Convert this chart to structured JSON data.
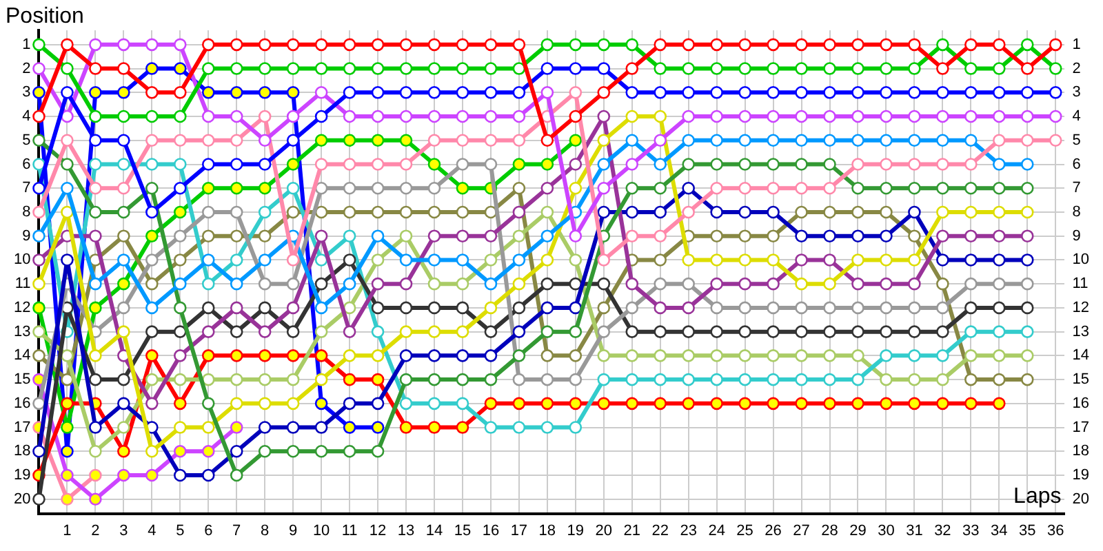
{
  "chart_data": {
    "type": "line",
    "xlabel": "Laps",
    "ylabel": "Position",
    "x": [
      0,
      1,
      2,
      3,
      4,
      5,
      6,
      7,
      8,
      9,
      10,
      11,
      12,
      13,
      14,
      15,
      16,
      17,
      18,
      19,
      20,
      21,
      22,
      23,
      24,
      25,
      26,
      27,
      28,
      29,
      30,
      31,
      32,
      33,
      34,
      35,
      36
    ],
    "xlim": [
      0,
      36.3
    ],
    "xticks": [
      1,
      2,
      3,
      4,
      5,
      6,
      7,
      8,
      9,
      10,
      11,
      12,
      13,
      14,
      15,
      16,
      17,
      18,
      19,
      20,
      21,
      22,
      23,
      24,
      25,
      26,
      27,
      28,
      29,
      30,
      31,
      32,
      33,
      34,
      35,
      36
    ],
    "ylim": [
      20.6,
      0.4
    ],
    "yticks": [
      1,
      2,
      3,
      4,
      5,
      6,
      7,
      8,
      9,
      10,
      11,
      12,
      13,
      14,
      15,
      16,
      17,
      18,
      19,
      20
    ],
    "y2lim": [
      20.6,
      0.4
    ],
    "y2ticks": [
      1,
      2,
      3,
      4,
      5,
      6,
      7,
      8,
      9,
      10,
      11,
      12,
      13,
      14,
      15,
      16,
      17,
      18,
      19,
      20
    ],
    "grid": true,
    "legend": false,
    "marker": "circle",
    "line_style": "solid",
    "series": [
      {
        "color": "#ff0000",
        "values": [
          4,
          1,
          2,
          2,
          3,
          3,
          1,
          1,
          1,
          1,
          1,
          1,
          1,
          1,
          1,
          1,
          1,
          1,
          5,
          4,
          3,
          2,
          1,
          1,
          1,
          1,
          1,
          1,
          1,
          1,
          1,
          1,
          2,
          1,
          1,
          2,
          1
        ]
      },
      {
        "color": "#00cc00",
        "values": [
          1,
          2,
          4,
          4,
          4,
          4,
          2,
          2,
          2,
          2,
          2,
          2,
          2,
          2,
          2,
          2,
          2,
          2,
          1,
          1,
          1,
          1,
          2,
          2,
          2,
          2,
          2,
          2,
          2,
          2,
          2,
          2,
          1,
          2,
          2,
          1,
          2
        ]
      },
      {
        "color": "#0000ff",
        "values": [
          7,
          3,
          5,
          5,
          8,
          7,
          6,
          6,
          6,
          5,
          4,
          3,
          3,
          3,
          3,
          3,
          3,
          3,
          2,
          2,
          2,
          3,
          3,
          3,
          3,
          3,
          3,
          3,
          3,
          3,
          3,
          3,
          3,
          3,
          3,
          3,
          3
        ]
      },
      {
        "color": "#cc44ff",
        "values": [
          2,
          4,
          1,
          1,
          1,
          1,
          4,
          4,
          5,
          4,
          3,
          4,
          4,
          4,
          4,
          4,
          4,
          4,
          3,
          9,
          7,
          6,
          5,
          4,
          4,
          4,
          4,
          4,
          4,
          4,
          4,
          4,
          4,
          4,
          4,
          4,
          4
        ]
      },
      {
        "color": "#ff88aa",
        "values": [
          8,
          5,
          7,
          7,
          5,
          5,
          5,
          5,
          4,
          10,
          6,
          6,
          6,
          6,
          5,
          5,
          5,
          5,
          4,
          3,
          10,
          9,
          9,
          8,
          7,
          7,
          7,
          7,
          7,
          6,
          6,
          6,
          6,
          6,
          5,
          5,
          5
        ]
      },
      {
        "color": "#0099ff",
        "values": [
          9,
          7,
          11,
          10,
          12,
          11,
          10,
          11,
          10,
          9,
          12,
          11,
          9,
          10,
          10,
          10,
          11,
          10,
          9,
          8,
          6,
          5,
          6,
          5,
          5,
          5,
          5,
          5,
          5,
          5,
          5,
          5,
          5,
          5,
          6,
          6,
          null
        ]
      },
      {
        "color": "#339933",
        "values": [
          5,
          6,
          8,
          8,
          7,
          12,
          16,
          19,
          18,
          18,
          18,
          18,
          18,
          15,
          15,
          15,
          15,
          14,
          13,
          13,
          9,
          7,
          7,
          6,
          6,
          6,
          6,
          6,
          6,
          7,
          7,
          7,
          7,
          7,
          7,
          7,
          null
        ]
      },
      {
        "color": "#dddd00",
        "values": [
          11,
          8,
          14,
          13,
          18,
          17,
          17,
          16,
          16,
          16,
          15,
          14,
          14,
          13,
          13,
          13,
          12,
          11,
          10,
          7,
          5,
          4,
          4,
          10,
          10,
          10,
          10,
          11,
          11,
          10,
          10,
          10,
          8,
          8,
          8,
          8,
          null
        ]
      },
      {
        "color": "#993399",
        "values": [
          10,
          9,
          9,
          14,
          16,
          14,
          13,
          12,
          13,
          12,
          9,
          13,
          11,
          11,
          9,
          9,
          9,
          8,
          7,
          6,
          4,
          11,
          12,
          12,
          11,
          11,
          11,
          10,
          10,
          11,
          11,
          11,
          9,
          9,
          9,
          9,
          null
        ]
      },
      {
        "color": "#0000bb",
        "values": [
          18,
          10,
          17,
          16,
          17,
          19,
          19,
          18,
          17,
          17,
          17,
          16,
          16,
          14,
          14,
          14,
          14,
          13,
          12,
          12,
          8,
          8,
          8,
          7,
          8,
          8,
          8,
          9,
          9,
          9,
          9,
          8,
          10,
          10,
          10,
          10,
          null
        ]
      },
      {
        "color": "#999999",
        "values": [
          16,
          11,
          13,
          12,
          10,
          9,
          8,
          8,
          11,
          11,
          7,
          7,
          7,
          7,
          7,
          6,
          6,
          15,
          15,
          15,
          13,
          12,
          11,
          11,
          12,
          12,
          12,
          12,
          12,
          12,
          12,
          12,
          12,
          11,
          11,
          11,
          null
        ]
      },
      {
        "color": "#333333",
        "values": [
          20,
          12,
          15,
          15,
          13,
          13,
          12,
          13,
          12,
          13,
          11,
          10,
          12,
          12,
          12,
          12,
          13,
          12,
          11,
          11,
          11,
          13,
          13,
          13,
          13,
          13,
          13,
          13,
          13,
          13,
          13,
          13,
          13,
          12,
          12,
          12,
          null
        ]
      },
      {
        "color": "#33cccc",
        "values": [
          6,
          13,
          6,
          6,
          6,
          6,
          11,
          10,
          8,
          7,
          10,
          9,
          13,
          16,
          16,
          16,
          17,
          17,
          17,
          17,
          15,
          15,
          15,
          15,
          15,
          15,
          15,
          15,
          15,
          15,
          14,
          14,
          14,
          13,
          13,
          13,
          null
        ]
      },
      {
        "color": "#aacc66",
        "values": [
          13,
          14,
          18,
          17,
          15,
          15,
          15,
          15,
          15,
          15,
          13,
          12,
          10,
          9,
          11,
          11,
          10,
          9,
          8,
          10,
          14,
          14,
          14,
          14,
          14,
          14,
          14,
          14,
          14,
          14,
          15,
          15,
          15,
          14,
          14,
          14,
          null
        ]
      },
      {
        "color": "#888844",
        "values": [
          14,
          15,
          10,
          9,
          11,
          10,
          9,
          9,
          9,
          8,
          8,
          8,
          8,
          8,
          8,
          8,
          8,
          7,
          14,
          14,
          12,
          10,
          10,
          9,
          9,
          9,
          9,
          8,
          8,
          8,
          8,
          9,
          11,
          15,
          15,
          15,
          null
        ]
      },
      {
        "color": "#ff0000",
        "values": [
          19,
          16,
          16,
          18,
          14,
          16,
          14,
          14,
          14,
          14,
          14,
          15,
          15,
          17,
          17,
          17,
          16,
          16,
          16,
          16,
          16,
          16,
          16,
          16,
          16,
          16,
          16,
          16,
          16,
          16,
          16,
          16,
          16,
          16,
          16,
          null,
          null
        ],
        "colors": [
          "#ffff00",
          "#ffff00",
          "#ffff00",
          "#ffff00",
          "#ffff00",
          "#ffff00",
          "#ffff00",
          "#ffff00",
          "#ffff00",
          "#ffff00",
          "#ffff00",
          "#ffff00",
          "#ffff00",
          "#ffff00",
          "#ffff00",
          "#ffff00",
          "#ffff00",
          "#ffff00",
          "#ffff00",
          "#ffff00",
          "#ffff00",
          "#ffff00",
          "#ffff00",
          "#ffff00",
          "#ffff00",
          "#ffff00",
          "#ffff00",
          "#ffff00",
          "#ffff00",
          "#ffff00",
          "#ffff00",
          "#ffff00",
          "#ffff00",
          "#ffff00",
          "#ffff00",
          null,
          null
        ]
      },
      {
        "color": "#00cc00",
        "values": [
          12,
          17,
          12,
          11,
          9,
          8,
          7,
          7,
          7,
          6,
          5,
          5,
          5,
          5,
          6,
          7,
          7,
          6,
          6,
          5,
          null,
          null,
          null,
          null,
          null,
          null,
          null,
          null,
          null,
          null,
          null,
          null,
          null,
          null,
          null,
          null,
          null
        ],
        "colors": [
          "#ffff00",
          "#ffff00",
          "#ffff00",
          "#ffff00",
          "#ffff00",
          "#ffff00",
          "#ffff00",
          "#ffff00",
          "#ffff00",
          "#ffff00",
          "#ffff00",
          "#ffff00",
          "#ffff00",
          "#ffff00",
          "#ffff00",
          "#ffff00",
          "#ffff00",
          "#ffff00",
          "#ffff00",
          "#ffff00",
          null,
          null,
          null,
          null,
          null,
          null,
          null,
          null,
          null,
          null,
          null,
          null,
          null,
          null,
          null,
          null,
          null
        ]
      },
      {
        "color": "#0000ff",
        "values": [
          3,
          18,
          3,
          3,
          2,
          2,
          3,
          3,
          3,
          3,
          16,
          17,
          17,
          null,
          null,
          null,
          null,
          null,
          null,
          null,
          null,
          null,
          null,
          null,
          null,
          null,
          null,
          null,
          null,
          null,
          null,
          null,
          null,
          null,
          null,
          null,
          null
        ],
        "colors": [
          "#ffff00",
          "#ffff00",
          "#ffff00",
          "#ffff00",
          "#ffff00",
          "#ffff00",
          "#ffff00",
          "#ffff00",
          "#ffff00",
          "#ffff00",
          "#ffff00",
          "#ffff00",
          "#ffff00",
          null,
          null,
          null,
          null,
          null,
          null,
          null,
          null,
          null,
          null,
          null,
          null,
          null,
          null,
          null,
          null,
          null,
          null,
          null,
          null,
          null,
          null,
          null,
          null
        ]
      },
      {
        "color": "#cc44ff",
        "values": [
          15,
          19,
          20,
          19,
          19,
          18,
          18,
          17,
          null,
          null,
          null,
          null,
          null,
          null,
          null,
          null,
          null,
          null,
          null,
          null,
          null,
          null,
          null,
          null,
          null,
          null,
          null,
          null,
          null,
          null,
          null,
          null,
          null,
          null,
          null,
          null,
          null
        ],
        "colors": [
          "#ffff00",
          "#ffff00",
          "#ffff00",
          "#ffff00",
          "#ffff00",
          "#ffff00",
          "#ffff00",
          "#ffff00",
          null,
          null,
          null,
          null,
          null,
          null,
          null,
          null,
          null,
          null,
          null,
          null,
          null,
          null,
          null,
          null,
          null,
          null,
          null,
          null,
          null,
          null,
          null,
          null,
          null,
          null,
          null,
          null,
          null
        ]
      },
      {
        "color": "#ff88aa",
        "values": [
          17,
          20,
          19,
          null,
          null,
          null,
          null,
          null,
          null,
          null,
          null,
          null,
          null,
          null,
          null,
          null,
          null,
          null,
          null,
          null,
          null,
          null,
          null,
          null,
          null,
          null,
          null,
          null,
          null,
          null,
          null,
          null,
          null,
          null,
          null,
          null,
          null
        ],
        "colors": [
          "#ffff00",
          "#ffff00",
          "#ffff00",
          null,
          null,
          null,
          null,
          null,
          null,
          null,
          null,
          null,
          null,
          null,
          null,
          null,
          null,
          null,
          null,
          null,
          null,
          null,
          null,
          null,
          null,
          null,
          null,
          null,
          null,
          null,
          null,
          null,
          null,
          null,
          null,
          null,
          null
        ]
      }
    ]
  }
}
